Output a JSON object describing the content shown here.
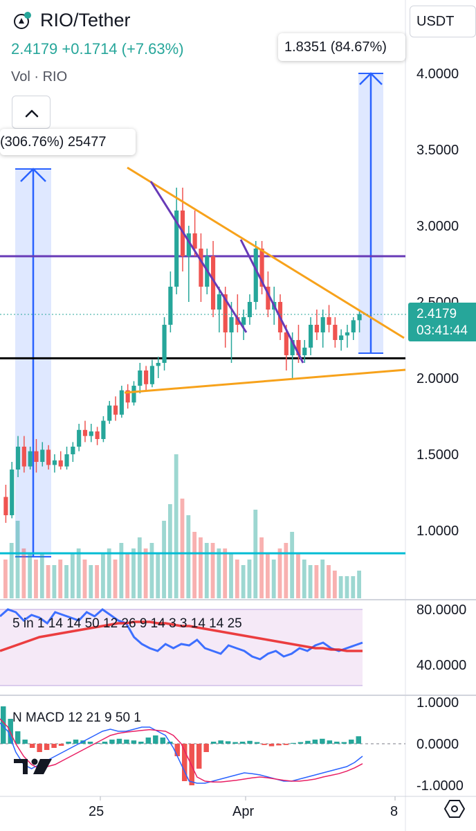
{
  "header": {
    "symbol_title": "RIO/Tether",
    "last_price_line": "2.4179 +0.1714 (+7.63%)",
    "volume_label": "Vol · RIO"
  },
  "toolbar": {
    "currency_button": "USDT"
  },
  "callouts": {
    "left_measure": "(306.76%) 25477",
    "right_measure": "1.8351 (84.67%)"
  },
  "price_tag": {
    "value": "2.4179",
    "countdown": "03:41:44"
  },
  "colors": {
    "up": "#26a69a",
    "down": "#ef5350",
    "orange": "#f7a21b",
    "purple": "#673ab7",
    "blue": "#2962ff",
    "cyan": "#00bcd4",
    "black": "#000000"
  },
  "chart_data": [
    {
      "type": "candlestick",
      "title": "RIO/Tether",
      "y_axis_ticks": [
        "4.0000",
        "3.5000",
        "3.0000",
        "2.5000",
        "2.0000",
        "1.5000",
        "1.0000"
      ],
      "x_axis_ticks": [
        "25",
        "Apr",
        "8"
      ],
      "ylim": [
        0.75,
        4.2
      ],
      "last_price": 2.4179,
      "change": 0.1714,
      "change_percent": 7.63,
      "candles_ohlc": [
        [
          1.22,
          1.3,
          1.05,
          1.1
        ],
        [
          1.1,
          1.45,
          1.08,
          1.4
        ],
        [
          1.4,
          1.62,
          1.35,
          1.55
        ],
        [
          1.55,
          1.62,
          1.38,
          1.42
        ],
        [
          1.42,
          1.55,
          1.4,
          1.52
        ],
        [
          1.52,
          1.6,
          1.38,
          1.45
        ],
        [
          1.45,
          1.58,
          1.42,
          1.53
        ],
        [
          1.53,
          1.56,
          1.4,
          1.43
        ],
        [
          1.43,
          1.5,
          1.38,
          1.46
        ],
        [
          1.46,
          1.52,
          1.4,
          1.42
        ],
        [
          1.42,
          1.55,
          1.4,
          1.5
        ],
        [
          1.5,
          1.58,
          1.45,
          1.55
        ],
        [
          1.55,
          1.7,
          1.52,
          1.66
        ],
        [
          1.66,
          1.72,
          1.58,
          1.62
        ],
        [
          1.62,
          1.7,
          1.58,
          1.65
        ],
        [
          1.65,
          1.68,
          1.56,
          1.6
        ],
        [
          1.6,
          1.75,
          1.58,
          1.72
        ],
        [
          1.72,
          1.85,
          1.7,
          1.82
        ],
        [
          1.82,
          1.88,
          1.72,
          1.76
        ],
        [
          1.76,
          1.95,
          1.74,
          1.92
        ],
        [
          1.92,
          1.96,
          1.8,
          1.84
        ],
        [
          1.84,
          1.98,
          1.82,
          1.95
        ],
        [
          1.95,
          2.1,
          1.9,
          2.05
        ],
        [
          2.05,
          2.08,
          1.92,
          1.96
        ],
        [
          1.96,
          2.12,
          1.94,
          2.08
        ],
        [
          2.08,
          2.14,
          2.0,
          2.1
        ],
        [
          2.1,
          2.4,
          2.05,
          2.35
        ],
        [
          2.35,
          2.7,
          2.3,
          2.6
        ],
        [
          2.6,
          3.25,
          2.55,
          3.1
        ],
        [
          3.1,
          3.25,
          2.7,
          2.8
        ],
        [
          2.8,
          3.0,
          2.5,
          2.95
        ],
        [
          2.95,
          3.1,
          2.8,
          2.85
        ],
        [
          2.85,
          2.95,
          2.5,
          2.6
        ],
        [
          2.6,
          2.85,
          2.55,
          2.8
        ],
        [
          2.8,
          2.9,
          2.4,
          2.45
        ],
        [
          2.45,
          2.6,
          2.3,
          2.55
        ],
        [
          2.55,
          2.6,
          2.2,
          2.3
        ],
        [
          2.3,
          2.5,
          2.1,
          2.4
        ],
        [
          2.4,
          2.55,
          2.3,
          2.35
        ],
        [
          2.35,
          2.45,
          2.25,
          2.4
        ],
        [
          2.4,
          2.55,
          2.35,
          2.5
        ],
        [
          2.5,
          2.9,
          2.45,
          2.85
        ],
        [
          2.85,
          2.9,
          2.55,
          2.6
        ],
        [
          2.6,
          2.7,
          2.4,
          2.45
        ],
        [
          2.45,
          2.6,
          2.35,
          2.5
        ],
        [
          2.5,
          2.55,
          2.25,
          2.3
        ],
        [
          2.3,
          2.35,
          2.05,
          2.15
        ],
        [
          2.15,
          2.3,
          2.0,
          2.25
        ],
        [
          2.25,
          2.35,
          2.1,
          2.15
        ],
        [
          2.15,
          2.25,
          2.1,
          2.2
        ],
        [
          2.2,
          2.4,
          2.15,
          2.35
        ],
        [
          2.35,
          2.45,
          2.25,
          2.3
        ],
        [
          2.3,
          2.45,
          2.2,
          2.4
        ],
        [
          2.4,
          2.48,
          2.3,
          2.35
        ],
        [
          2.35,
          2.4,
          2.2,
          2.25
        ],
        [
          2.25,
          2.32,
          2.18,
          2.28
        ],
        [
          2.28,
          2.35,
          2.2,
          2.3
        ],
        [
          2.3,
          2.4,
          2.25,
          2.38
        ],
        [
          2.38,
          2.45,
          2.3,
          2.42
        ]
      ],
      "volume": [
        0.35,
        0.5,
        0.7,
        0.45,
        0.4,
        0.35,
        0.4,
        0.3,
        0.3,
        0.35,
        0.3,
        0.4,
        0.45,
        0.35,
        0.3,
        0.3,
        0.4,
        0.45,
        0.35,
        0.5,
        0.4,
        0.45,
        0.55,
        0.45,
        0.5,
        0.4,
        0.7,
        0.85,
        1.3,
        0.9,
        0.75,
        0.6,
        0.55,
        0.5,
        0.5,
        0.45,
        0.45,
        0.4,
        0.35,
        0.3,
        0.35,
        0.8,
        0.55,
        0.4,
        0.35,
        0.45,
        0.5,
        0.6,
        0.4,
        0.35,
        0.3,
        0.3,
        0.35,
        0.3,
        0.25,
        0.2,
        0.2,
        0.2,
        0.25
      ],
      "annotations": {
        "horizontal_levels": [
          2.8,
          2.13,
          0.85
        ],
        "left_measure_label": "(306.76%) 25477",
        "right_measure_label": "1.8351 (84.67%)"
      }
    },
    {
      "type": "line",
      "title": "5 in 1 14 14 50 12 26 9 14 3 3 14 14 25",
      "y_axis_ticks": [
        "80.0000",
        "40.0000"
      ],
      "ylim": [
        25,
        85
      ],
      "band": [
        25,
        80
      ],
      "series": [
        {
          "values": [
            75,
            80,
            78,
            72,
            76,
            74,
            70,
            78,
            76,
            74,
            72,
            78,
            75,
            80,
            76,
            72,
            70,
            60,
            55,
            52,
            50,
            55,
            52,
            55,
            54,
            58,
            52,
            50,
            48,
            54,
            52,
            50,
            46,
            44,
            48,
            50,
            46,
            48,
            52,
            50,
            54,
            56,
            52,
            50,
            52,
            54,
            56
          ]
        },
        {
          "values": [
            50,
            52,
            54,
            56,
            58,
            60,
            61,
            62,
            63,
            64,
            65,
            66,
            67,
            68,
            69,
            70,
            70,
            71,
            71,
            71,
            70,
            70,
            69,
            68,
            68,
            67,
            66,
            65,
            64,
            63,
            62,
            61,
            60,
            59,
            58,
            57,
            56,
            55,
            54,
            53,
            52,
            52,
            51,
            51,
            50,
            50,
            50
          ]
        }
      ]
    },
    {
      "type": "bar",
      "title": "N MACD 12 21 9 50 1",
      "y_axis_ticks": [
        "1.0000",
        "0.0000",
        "-1.0000"
      ],
      "ylim": [
        -1.1,
        1.1
      ],
      "histogram": [
        0.9,
        0.6,
        0.3,
        0.1,
        -0.1,
        -0.2,
        -0.15,
        -0.1,
        -0.05,
        0.05,
        0.1,
        0.08,
        0.05,
        0.02,
        0.05,
        0.1,
        0.12,
        0.1,
        0.08,
        0.05,
        0.15,
        0.2,
        0.15,
        0.05,
        -0.3,
        -0.9,
        -1.0,
        -0.6,
        -0.2,
        0.05,
        0.08,
        0.06,
        0.04,
        0.05,
        0.07,
        0.04,
        -0.03,
        -0.06,
        -0.04,
        -0.03,
        0.02,
        0.04,
        0.07,
        0.1,
        0.12,
        0.08,
        0.05,
        0.04,
        0.1,
        0.18
      ],
      "series": [
        {
          "values": [
            0.5,
            0.3,
            -0.2,
            -0.5,
            -0.6,
            -0.5,
            -0.4,
            -0.3,
            -0.2,
            -0.1,
            0.0,
            0.1,
            0.2,
            0.3,
            0.35,
            0.3,
            0.3,
            0.35,
            0.4,
            0.4,
            0.3,
            0.2,
            -0.1,
            -0.5,
            -0.9,
            -0.95,
            -0.95,
            -0.9,
            -0.85,
            -0.8,
            -0.75,
            -0.7,
            -0.72,
            -0.75,
            -0.8,
            -0.85,
            -0.9,
            -0.9,
            -0.85,
            -0.8,
            -0.75,
            -0.7,
            -0.65,
            -0.6,
            -0.55,
            -0.45,
            -0.3
          ]
        },
        {
          "values": [
            0.6,
            0.4,
            0.0,
            -0.3,
            -0.5,
            -0.6,
            -0.55,
            -0.5,
            -0.4,
            -0.3,
            -0.2,
            -0.1,
            0.0,
            0.1,
            0.2,
            0.25,
            0.28,
            0.3,
            0.32,
            0.34,
            0.32,
            0.3,
            0.2,
            0.0,
            -0.4,
            -0.8,
            -0.9,
            -0.92,
            -0.92,
            -0.9,
            -0.88,
            -0.85,
            -0.82,
            -0.8,
            -0.82,
            -0.85,
            -0.88,
            -0.9,
            -0.9,
            -0.88,
            -0.85,
            -0.8,
            -0.76,
            -0.72,
            -0.66,
            -0.58,
            -0.48
          ]
        }
      ]
    }
  ]
}
